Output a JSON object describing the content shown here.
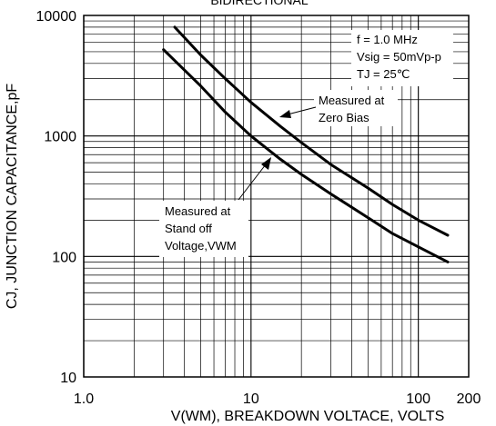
{
  "chart_data": {
    "type": "line",
    "title": "BIDIRECTIONAL",
    "xlabel": "V(WM), BREAKDOWN VOLTACE, VOLTS",
    "ylabel": "CJ, JUNCTION CAPACITANCE,pF",
    "x_scale": "log",
    "y_scale": "log",
    "xlim": [
      1,
      200
    ],
    "ylim": [
      10,
      10000
    ],
    "x_ticks": [
      {
        "value": 1,
        "label": "1.0"
      },
      {
        "value": 10,
        "label": "10"
      },
      {
        "value": 100,
        "label": "100"
      },
      {
        "value": 200,
        "label": "200"
      }
    ],
    "y_ticks": [
      {
        "value": 10,
        "label": "10"
      },
      {
        "value": 100,
        "label": "100"
      },
      {
        "value": 1000,
        "label": "1000"
      },
      {
        "value": 10000,
        "label": "10000"
      }
    ],
    "grid": true,
    "legend_lines": [
      "f = 1.0 MHz",
      "Vsig = 50mVp-p",
      "TJ = 25℃"
    ],
    "legend_position": "top-right",
    "series": [
      {
        "name": "Measured at Zero Bias",
        "label_lines": [
          "Measured at",
          "Zero Bias"
        ],
        "x": [
          3.5,
          5,
          7,
          10,
          15,
          20,
          30,
          50,
          70,
          100,
          150
        ],
        "y": [
          8000,
          4700,
          3000,
          1900,
          1200,
          880,
          580,
          370,
          270,
          200,
          150
        ]
      },
      {
        "name": "Measured at Stand off Voltage,VWM",
        "label_lines": [
          "Measured at",
          "Stand off",
          "Voltage,VWM"
        ],
        "x": [
          3.0,
          5,
          7,
          10,
          15,
          20,
          30,
          50,
          70,
          100,
          150
        ],
        "y": [
          5200,
          2600,
          1580,
          1000,
          640,
          480,
          330,
          210,
          155,
          120,
          90
        ]
      }
    ]
  }
}
